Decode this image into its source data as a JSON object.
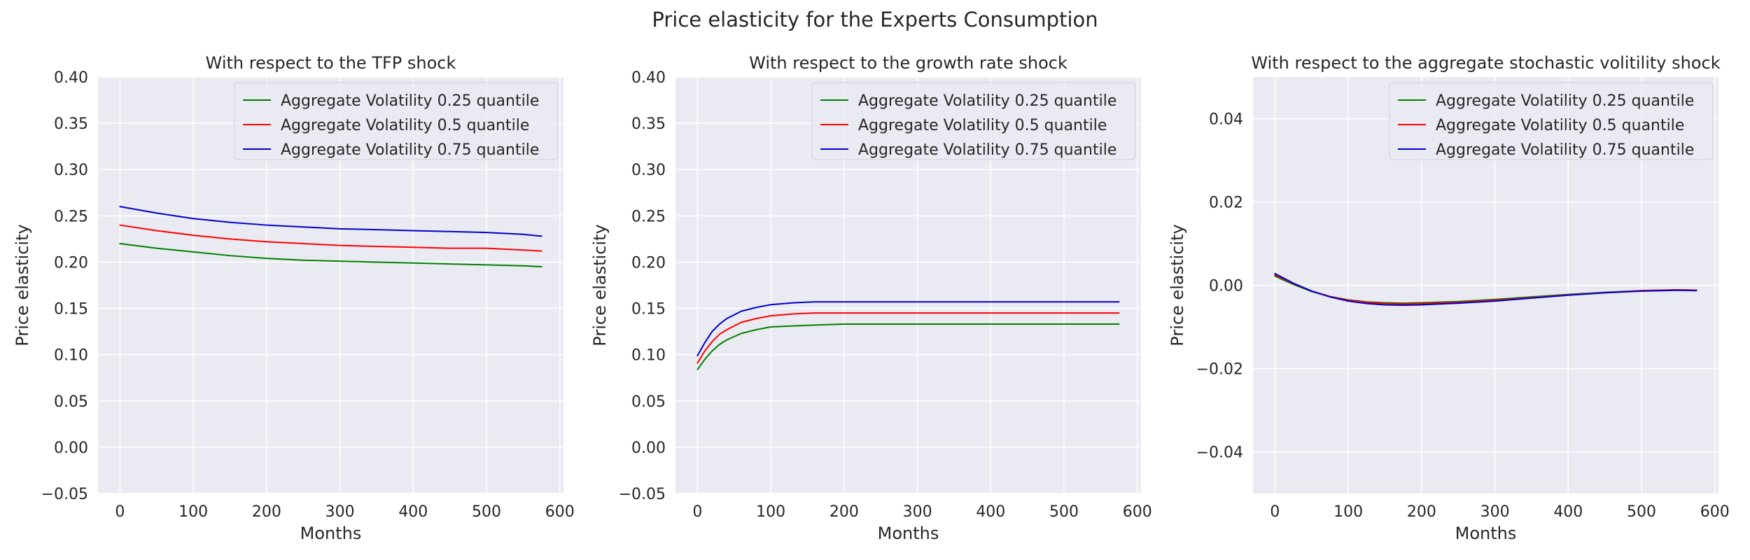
{
  "figure": {
    "title": "Price elasticity for the Experts Consumption"
  },
  "chart_data": [
    {
      "type": "line",
      "title": "With respect to the TFP shock",
      "xlabel": "Months",
      "ylabel": "Price elasticity",
      "xlim": [
        -30,
        605
      ],
      "ylim": [
        -0.05,
        0.4
      ],
      "xticks": [
        0,
        100,
        200,
        300,
        400,
        500,
        600
      ],
      "yticks": [
        -0.05,
        0.0,
        0.05,
        0.1,
        0.15,
        0.2,
        0.25,
        0.3,
        0.35,
        0.4
      ],
      "ytick_decimals": 2,
      "grid": true,
      "legend_position": "top-right",
      "series": [
        {
          "name": "Aggregate Volatility 0.25 quantile",
          "color": "#008000",
          "x": [
            0,
            50,
            100,
            150,
            200,
            250,
            300,
            350,
            400,
            450,
            500,
            550,
            575
          ],
          "y": [
            0.22,
            0.215,
            0.211,
            0.207,
            0.204,
            0.202,
            0.201,
            0.2,
            0.199,
            0.198,
            0.197,
            0.196,
            0.195
          ]
        },
        {
          "name": "Aggregate Volatility 0.5 quantile",
          "color": "#ff0000",
          "x": [
            0,
            50,
            100,
            150,
            200,
            250,
            300,
            350,
            400,
            450,
            500,
            550,
            575
          ],
          "y": [
            0.24,
            0.234,
            0.229,
            0.225,
            0.222,
            0.22,
            0.218,
            0.217,
            0.216,
            0.215,
            0.215,
            0.213,
            0.212
          ]
        },
        {
          "name": "Aggregate Volatility 0.75 quantile",
          "color": "#0000cc",
          "x": [
            0,
            50,
            100,
            150,
            200,
            250,
            300,
            350,
            400,
            450,
            500,
            550,
            575
          ],
          "y": [
            0.26,
            0.253,
            0.247,
            0.243,
            0.24,
            0.238,
            0.236,
            0.235,
            0.234,
            0.233,
            0.232,
            0.23,
            0.228
          ]
        }
      ]
    },
    {
      "type": "line",
      "title": "With respect to the growth rate shock",
      "xlabel": "Months",
      "ylabel": "Price elasticity",
      "xlim": [
        -30,
        605
      ],
      "ylim": [
        -0.05,
        0.4
      ],
      "xticks": [
        0,
        100,
        200,
        300,
        400,
        500,
        600
      ],
      "yticks": [
        -0.05,
        0.0,
        0.05,
        0.1,
        0.15,
        0.2,
        0.25,
        0.3,
        0.35,
        0.4
      ],
      "ytick_decimals": 2,
      "grid": true,
      "legend_position": "top-right",
      "series": [
        {
          "name": "Aggregate Volatility 0.25 quantile",
          "color": "#008000",
          "x": [
            0,
            10,
            20,
            30,
            40,
            60,
            80,
            100,
            130,
            160,
            200,
            250,
            300,
            400,
            500,
            575
          ],
          "y": [
            0.084,
            0.095,
            0.104,
            0.111,
            0.116,
            0.123,
            0.127,
            0.13,
            0.131,
            0.132,
            0.133,
            0.133,
            0.133,
            0.133,
            0.133,
            0.133
          ]
        },
        {
          "name": "Aggregate Volatility 0.5 quantile",
          "color": "#ff0000",
          "x": [
            0,
            10,
            20,
            30,
            40,
            60,
            80,
            100,
            130,
            160,
            200,
            250,
            300,
            400,
            500,
            575
          ],
          "y": [
            0.091,
            0.104,
            0.114,
            0.122,
            0.127,
            0.135,
            0.139,
            0.142,
            0.144,
            0.145,
            0.145,
            0.145,
            0.145,
            0.145,
            0.145,
            0.145
          ]
        },
        {
          "name": "Aggregate Volatility 0.75 quantile",
          "color": "#0000cc",
          "x": [
            0,
            10,
            20,
            30,
            40,
            60,
            80,
            100,
            130,
            160,
            200,
            250,
            300,
            400,
            500,
            575
          ],
          "y": [
            0.099,
            0.113,
            0.125,
            0.133,
            0.139,
            0.147,
            0.151,
            0.154,
            0.156,
            0.157,
            0.157,
            0.157,
            0.157,
            0.157,
            0.157,
            0.157
          ]
        }
      ]
    },
    {
      "type": "line",
      "title": "With respect to the aggregate stochastic volitility shock",
      "xlabel": "Months",
      "ylabel": "Price elasticity",
      "xlim": [
        -30,
        605
      ],
      "ylim": [
        -0.05,
        0.05
      ],
      "xticks": [
        0,
        100,
        200,
        300,
        400,
        500,
        600
      ],
      "yticks": [
        -0.04,
        -0.02,
        0.0,
        0.02,
        0.04
      ],
      "ytick_decimals": 2,
      "grid": true,
      "legend_position": "top-right",
      "series": [
        {
          "name": "Aggregate Volatility 0.25 quantile",
          "color": "#008000",
          "x": [
            0,
            25,
            50,
            75,
            100,
            125,
            150,
            175,
            200,
            250,
            300,
            350,
            400,
            450,
            500,
            550,
            575
          ],
          "y": [
            0.0022,
            0.0002,
            -0.0015,
            -0.0027,
            -0.0035,
            -0.004,
            -0.0042,
            -0.0043,
            -0.0042,
            -0.0039,
            -0.0034,
            -0.0028,
            -0.0022,
            -0.0017,
            -0.0013,
            -0.0011,
            -0.0012
          ]
        },
        {
          "name": "Aggregate Volatility 0.5 quantile",
          "color": "#ff0000",
          "x": [
            0,
            25,
            50,
            75,
            100,
            125,
            150,
            175,
            200,
            250,
            300,
            350,
            400,
            450,
            500,
            550,
            575
          ],
          "y": [
            0.0025,
            0.0004,
            -0.0014,
            -0.0027,
            -0.0036,
            -0.0041,
            -0.0044,
            -0.0045,
            -0.0044,
            -0.0041,
            -0.0036,
            -0.003,
            -0.0023,
            -0.0018,
            -0.0013,
            -0.0011,
            -0.0012
          ]
        },
        {
          "name": "Aggregate Volatility 0.75 quantile",
          "color": "#0000cc",
          "x": [
            0,
            25,
            50,
            75,
            100,
            125,
            150,
            175,
            200,
            250,
            300,
            350,
            400,
            450,
            500,
            550,
            575
          ],
          "y": [
            0.0028,
            0.0005,
            -0.0014,
            -0.0028,
            -0.0038,
            -0.0044,
            -0.0047,
            -0.0048,
            -0.0047,
            -0.0043,
            -0.0038,
            -0.0031,
            -0.0024,
            -0.0018,
            -0.0014,
            -0.0012,
            -0.0013
          ]
        }
      ]
    }
  ]
}
